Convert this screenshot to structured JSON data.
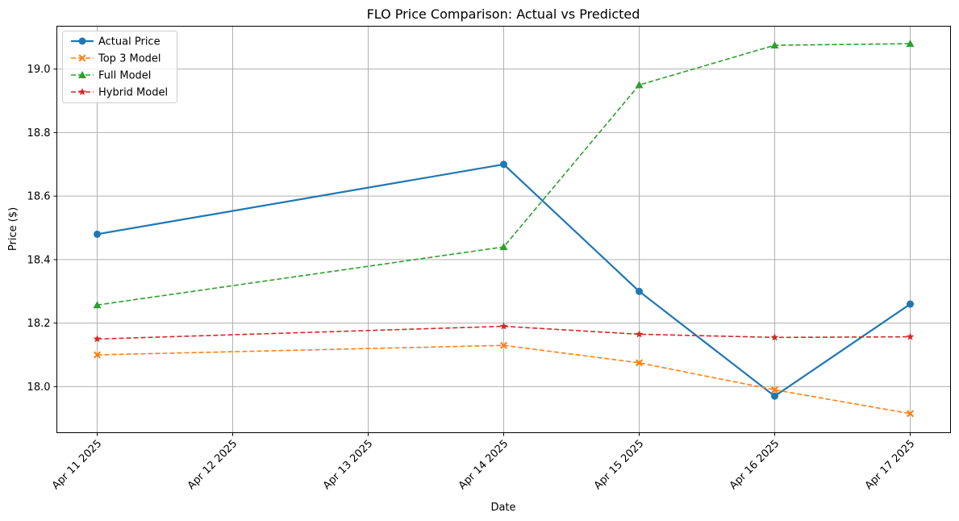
{
  "chart_data": {
    "type": "line",
    "title": "FLO Price Comparison: Actual vs Predicted",
    "xlabel": "Date",
    "ylabel": "Price ($)",
    "x": [
      "2025-04-11",
      "2025-04-14",
      "2025-04-15",
      "2025-04-16",
      "2025-04-17"
    ],
    "x_tick_labels": [
      "Apr 11 2025",
      "Apr 12 2025",
      "Apr 13 2025",
      "Apr 14 2025",
      "Apr 15 2025",
      "Apr 16 2025",
      "Apr 17 2025"
    ],
    "x_ticks": [
      "2025-04-11",
      "2025-04-12",
      "2025-04-13",
      "2025-04-14",
      "2025-04-15",
      "2025-04-16",
      "2025-04-17"
    ],
    "xlim": [
      "2025-04-11",
      "2025-04-17"
    ],
    "y_ticks": [
      18.0,
      18.2,
      18.4,
      18.6,
      18.8,
      19.0
    ],
    "y_tick_labels": [
      "18.0",
      "18.2",
      "18.4",
      "18.6",
      "18.8",
      "19.0"
    ],
    "ylim": [
      17.855,
      19.135
    ],
    "grid": true,
    "legend_position": "top-left",
    "series": [
      {
        "name": "Actual Price",
        "color": "#1f77b4",
        "linestyle": "solid",
        "marker": "circle",
        "values": [
          18.48,
          18.7,
          18.3,
          17.97,
          18.26
        ]
      },
      {
        "name": "Top 3 Model",
        "color": "#ff7f0e",
        "linestyle": "dashed",
        "marker": "x-filled",
        "values": [
          18.1,
          18.13,
          18.075,
          17.99,
          17.915
        ]
      },
      {
        "name": "Full Model",
        "color": "#2ca02c",
        "linestyle": "dashed",
        "marker": "triangle",
        "values": [
          18.257,
          18.44,
          18.95,
          19.075,
          19.08
        ]
      },
      {
        "name": "Hybrid Model",
        "color": "#d62728",
        "linestyle": "dashed",
        "marker": "star",
        "values": [
          18.15,
          18.19,
          18.165,
          18.155,
          18.157
        ]
      }
    ]
  }
}
